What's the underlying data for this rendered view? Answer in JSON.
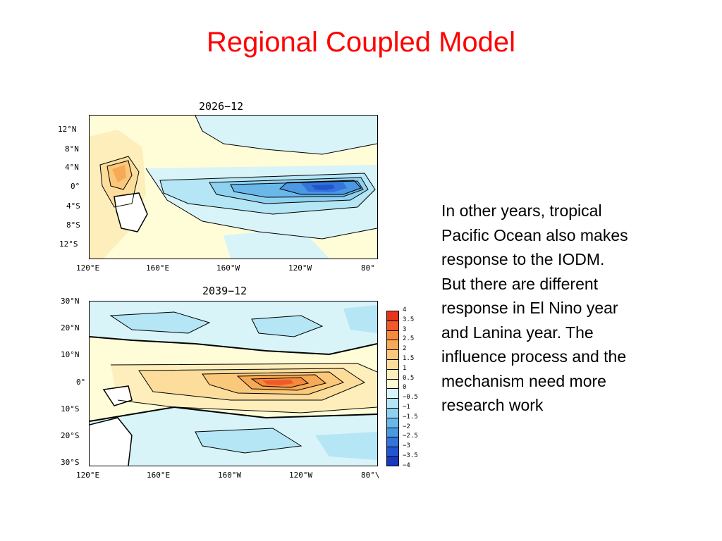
{
  "slide": {
    "title": "Regional Coupled Model",
    "body_lines": [
      "In other years, tropical",
      "Pacific Ocean also makes",
      "response to the IODM.",
      "But there are different",
      "response in El Nino year",
      "and Lanina year. The",
      "influence process and the",
      "mechanism need more",
      "research work"
    ]
  },
  "maps": [
    {
      "title": "2026−12",
      "lat_labels": [
        "12°N",
        "8°N",
        "4°N",
        "0°",
        "4°S",
        "8°S",
        "12°S"
      ],
      "lon_labels": [
        "120°E",
        "160°E",
        "160°W",
        "120°W",
        "80°"
      ]
    },
    {
      "title": "2039−12",
      "lat_labels": [
        "30°N",
        "20°N",
        "10°N",
        "0°",
        "10°S",
        "20°S",
        "30°S"
      ],
      "lon_labels": [
        "120°E",
        "160°E",
        "160°W",
        "120°W",
        "80°\\"
      ]
    }
  ],
  "legend": {
    "labels": [
      "4",
      "3.5",
      "3",
      "2.5",
      "2",
      "1.5",
      "1",
      "0.5",
      "0",
      "−0.5",
      "−1",
      "−1.5",
      "−2",
      "−2.5",
      "−3",
      "−3.5",
      "−4"
    ],
    "colors": [
      "#e8331e",
      "#f05a28",
      "#f58a3c",
      "#f7aa55",
      "#fac87a",
      "#fcdd9c",
      "#fdeebb",
      "#fffbd6",
      "#d8f4f8",
      "#b4e6f5",
      "#8fd2f0",
      "#6ab8ea",
      "#4b98e3",
      "#3474db",
      "#2255d0",
      "#1838c0"
    ]
  }
}
